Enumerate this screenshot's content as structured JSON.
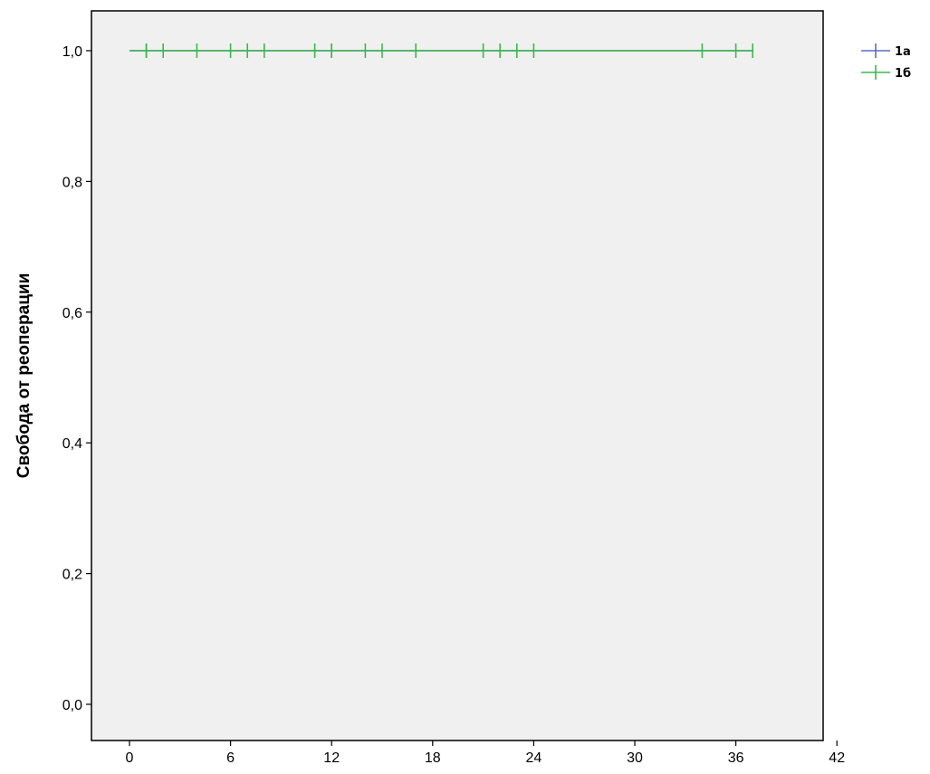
{
  "chart_data": {
    "type": "line",
    "subtype": "kaplan-meier survival",
    "title": "",
    "xlabel": "",
    "ylabel": "Свобода от реоперации",
    "xlim": [
      0,
      42
    ],
    "ylim": [
      0,
      1
    ],
    "x_ticks": [
      0,
      6,
      12,
      18,
      24,
      30,
      36,
      42
    ],
    "y_ticks": [
      0.0,
      0.2,
      0.4,
      0.6,
      0.8,
      1.0
    ],
    "x_tick_labels": [
      "0",
      "6",
      "12",
      "18",
      "24",
      "30",
      "36",
      "42"
    ],
    "y_tick_labels": [
      "0,0",
      "0,2",
      "0,4",
      "0,6",
      "0,8",
      "1,0"
    ],
    "grid": false,
    "plot_background": "#f0f0f0",
    "legend_position": "right",
    "series": [
      {
        "name": "1а",
        "color": "#5b6bc0",
        "survival": 1.0,
        "x_range": [
          0,
          37
        ],
        "censor_marks": [
          1,
          12
        ]
      },
      {
        "name": "1б",
        "color": "#3cb84a",
        "survival": 1.0,
        "x_range": [
          0,
          37
        ],
        "censor_marks": [
          1,
          2,
          4,
          6,
          7,
          8,
          11,
          12,
          14,
          15,
          17,
          21,
          22,
          23,
          24,
          34,
          36,
          37
        ]
      }
    ]
  }
}
